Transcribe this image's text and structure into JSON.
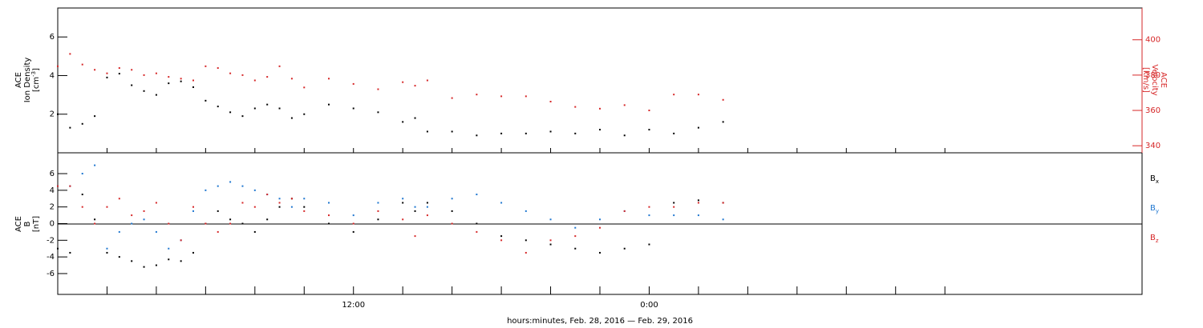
{
  "chart_data": [
    {
      "type": "scatter",
      "panel": "top",
      "left_axis": {
        "label_line1": "ACE",
        "label_line2": "Ion Density",
        "label_line3": "[cm",
        "label_sup": "-3",
        "label_tail": "]",
        "ylim": [
          0,
          7.5
        ],
        "ticks": [
          "2",
          "4",
          "6"
        ],
        "tick_values": [
          2,
          4,
          6
        ]
      },
      "right_axis": {
        "label_line1": "ACE",
        "label_line2": "Velocity",
        "label_line3": "[km/s]",
        "ylim": [
          336,
          418
        ],
        "ticks": [
          "340",
          "360",
          "380",
          "400"
        ],
        "tick_values": [
          340,
          360,
          380,
          400
        ]
      },
      "series": [
        {
          "name": "",
          "axis": "left",
          "color": "#000000",
          "x": [
            0,
            0.5,
            1,
            1.5,
            2,
            2.5,
            3,
            3.5,
            4,
            4.5,
            5,
            5.5,
            6,
            6.5,
            7,
            7.5,
            8,
            8.5,
            9,
            9.5,
            10,
            11,
            12,
            13,
            14,
            14.5,
            15,
            16,
            17,
            18,
            19,
            20,
            21,
            22,
            23,
            24,
            25,
            26,
            27
          ],
          "y": [
            2.0,
            1.3,
            1.5,
            1.9,
            3.9,
            4.1,
            3.5,
            3.2,
            3.0,
            3.6,
            3.7,
            3.4,
            2.7,
            2.4,
            2.1,
            1.9,
            2.3,
            2.5,
            2.3,
            1.8,
            2.0,
            2.5,
            2.3,
            2.1,
            1.6,
            1.8,
            1.1,
            1.1,
            0.9,
            1.0,
            1.0,
            1.1,
            1.0,
            1.2,
            0.9,
            1.2,
            1.0,
            1.3,
            1.6
          ]
        },
        {
          "name": "",
          "axis": "right",
          "color": "#d62728",
          "x": [
            0,
            0.5,
            1,
            1.5,
            2,
            2.5,
            3,
            3.5,
            4,
            4.5,
            5,
            5.5,
            6,
            6.5,
            7,
            7.5,
            8,
            8.5,
            9,
            9.5,
            10,
            11,
            12,
            13,
            14,
            14.5,
            15,
            16,
            17,
            18,
            19,
            20,
            21,
            22,
            23,
            24,
            25,
            26,
            27
          ],
          "y": [
            385,
            392,
            386,
            383,
            381,
            384,
            383,
            380,
            381,
            379,
            378,
            377,
            385,
            384,
            381,
            380,
            377,
            379,
            385,
            378,
            373,
            378,
            375,
            372,
            376,
            374,
            377,
            367,
            369,
            368,
            368,
            365,
            362,
            361,
            363,
            360,
            369,
            369,
            366
          ]
        }
      ]
    },
    {
      "type": "scatter",
      "panel": "bottom",
      "left_axis": {
        "label_line1": "ACE",
        "label_line2": "B",
        "label_line3": "[nT]",
        "ylim": [
          -8.5,
          8.5
        ],
        "ticks": [
          "-6",
          "-4",
          "-2",
          "0",
          "2",
          "4",
          "6"
        ],
        "tick_values": [
          -6,
          -4,
          -2,
          0,
          2,
          4,
          6
        ]
      },
      "series": [
        {
          "name": "B",
          "name_sub": "x",
          "color": "#000000",
          "x": [
            0,
            0.5,
            1,
            1.5,
            2,
            2.5,
            3,
            3.5,
            4,
            4.5,
            5,
            5.5,
            6,
            6.5,
            7,
            7.5,
            8,
            8.5,
            9,
            9.5,
            10,
            11,
            12,
            13,
            14,
            14.5,
            15,
            16,
            17,
            18,
            19,
            20,
            21,
            22,
            23,
            24,
            25,
            26,
            27
          ],
          "y": [
            -3.0,
            -3.5,
            3.5,
            0.5,
            -3.5,
            -4.0,
            -4.5,
            -5.2,
            -5.0,
            -4.3,
            -4.5,
            -3.5,
            0.0,
            1.5,
            0.5,
            0.0,
            -1.0,
            0.5,
            2.0,
            3.0,
            2.0,
            0.0,
            -1.0,
            0.5,
            2.5,
            1.5,
            2.5,
            1.5,
            0.0,
            -1.5,
            -2.0,
            -2.5,
            -3.0,
            -3.5,
            -3.0,
            -2.5,
            2.5,
            2.8,
            2.5
          ]
        },
        {
          "name": "B",
          "name_sub": "y",
          "color": "#1f77d0",
          "x": [
            0,
            0.5,
            1,
            1.5,
            2,
            2.5,
            3,
            3.5,
            4,
            4.5,
            5,
            5.5,
            6,
            6.5,
            7,
            7.5,
            8,
            8.5,
            9,
            9.5,
            10,
            11,
            12,
            13,
            14,
            14.5,
            15,
            16,
            17,
            18,
            19,
            20,
            21,
            22,
            23,
            24,
            25,
            26,
            27
          ],
          "y": [
            4.5,
            4.5,
            6.0,
            7.0,
            -3.0,
            -1.0,
            0.0,
            0.5,
            -1.0,
            -3.0,
            -2.0,
            1.5,
            4.0,
            4.5,
            5.0,
            4.5,
            4.0,
            3.5,
            3.0,
            2.0,
            3.0,
            2.5,
            1.0,
            2.5,
            3.0,
            2.0,
            2.0,
            3.0,
            3.5,
            2.5,
            1.5,
            0.5,
            -0.5,
            0.5,
            1.5,
            1.0,
            1.0,
            1.0,
            0.5
          ]
        },
        {
          "name": "B",
          "name_sub": "z",
          "color": "#d62728",
          "x": [
            0,
            0.5,
            1,
            1.5,
            2,
            2.5,
            3,
            3.5,
            4,
            4.5,
            5,
            5.5,
            6,
            6.5,
            7,
            7.5,
            8,
            8.5,
            9,
            9.5,
            10,
            11,
            12,
            13,
            14,
            14.5,
            15,
            16,
            17,
            18,
            19,
            20,
            21,
            22,
            23,
            24,
            25,
            26,
            27
          ],
          "y": [
            4.5,
            4.5,
            2.0,
            0.0,
            2.0,
            3.0,
            1.0,
            1.5,
            2.5,
            0.0,
            -2.0,
            2.0,
            0.0,
            -1.0,
            0.0,
            2.5,
            2.0,
            3.5,
            2.5,
            3.0,
            1.5,
            1.0,
            0.0,
            1.5,
            0.5,
            -1.5,
            1.0,
            0.0,
            -1.0,
            -2.0,
            -3.5,
            -2.0,
            -1.5,
            -0.5,
            1.5,
            2.0,
            2.0,
            2.5,
            2.5
          ]
        }
      ]
    }
  ],
  "x_axis": {
    "xlim": [
      0,
      44
    ],
    "tick_labels": [
      "12:00",
      "0:00"
    ],
    "tick_label_values": [
      12,
      24
    ],
    "major_tick_values": [
      2,
      4,
      6,
      8,
      10,
      12,
      14,
      16,
      18,
      20,
      22,
      24,
      26,
      28,
      30,
      32,
      34,
      36
    ],
    "title": "hours:minutes, Feb. 28, 2016 — Feb. 29, 2016"
  },
  "colors": {
    "black": "#000000",
    "red": "#d62728",
    "blue": "#1f77d0"
  }
}
